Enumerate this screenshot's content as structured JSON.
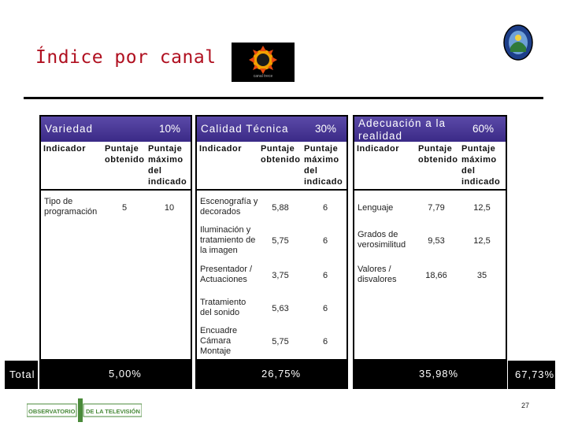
{
  "slide": {
    "title": "Índice por canal",
    "channel_logo_caption": "canal trece",
    "page_number": "27"
  },
  "columns": [
    {
      "name": "Variedad",
      "weight": "10%",
      "headers": [
        "Indicador",
        "Puntaje obtenido",
        "Puntaje máximo del indicado"
      ],
      "rows": [
        {
          "indicator": "Tipo de programación",
          "obtained": "5",
          "max": "10"
        }
      ],
      "total": "5,00%"
    },
    {
      "name": "Calidad Técnica",
      "weight": "30%",
      "headers": [
        "Indicador",
        "Puntaje obtenido",
        "Puntaje máximo del indicado"
      ],
      "rows": [
        {
          "indicator": "Escenografía y decorados",
          "obtained": "5,88",
          "max": "6"
        },
        {
          "indicator": "Iluminación y tratamiento de la imagen",
          "obtained": "5,75",
          "max": "6"
        },
        {
          "indicator": "Presentador / Actuaciones",
          "obtained": "3,75",
          "max": "6"
        },
        {
          "indicator": "Tratamiento del sonido",
          "obtained": "5,63",
          "max": "6"
        },
        {
          "indicator": "Encuadre Cámara Montaje",
          "obtained": "5,75",
          "max": "6"
        }
      ],
      "total": "26,75%"
    },
    {
      "name": "Adecuación a la realidad",
      "weight": "60%",
      "headers": [
        "Indicador",
        "Puntaje obtenido",
        "Puntaje máximo del indicado"
      ],
      "rows": [
        {
          "indicator": "Lenguaje",
          "obtained": "7,79",
          "max": "12,5"
        },
        {
          "indicator": "Grados de verosimilitud",
          "obtained": "9,53",
          "max": "12,5"
        },
        {
          "indicator": "Valores / disvalores",
          "obtained": "18,66",
          "max": "35"
        }
      ],
      "total": "35,98%"
    }
  ],
  "totals": {
    "label": "Total",
    "final": "67,73%"
  },
  "footer_logo": {
    "left": "OBSERVATORIO",
    "right": "DE LA TELEVISIÓN"
  },
  "colors": {
    "title": "#b01020",
    "header_bg": "#4a3a98",
    "logo_green": "#4a8a3a"
  }
}
